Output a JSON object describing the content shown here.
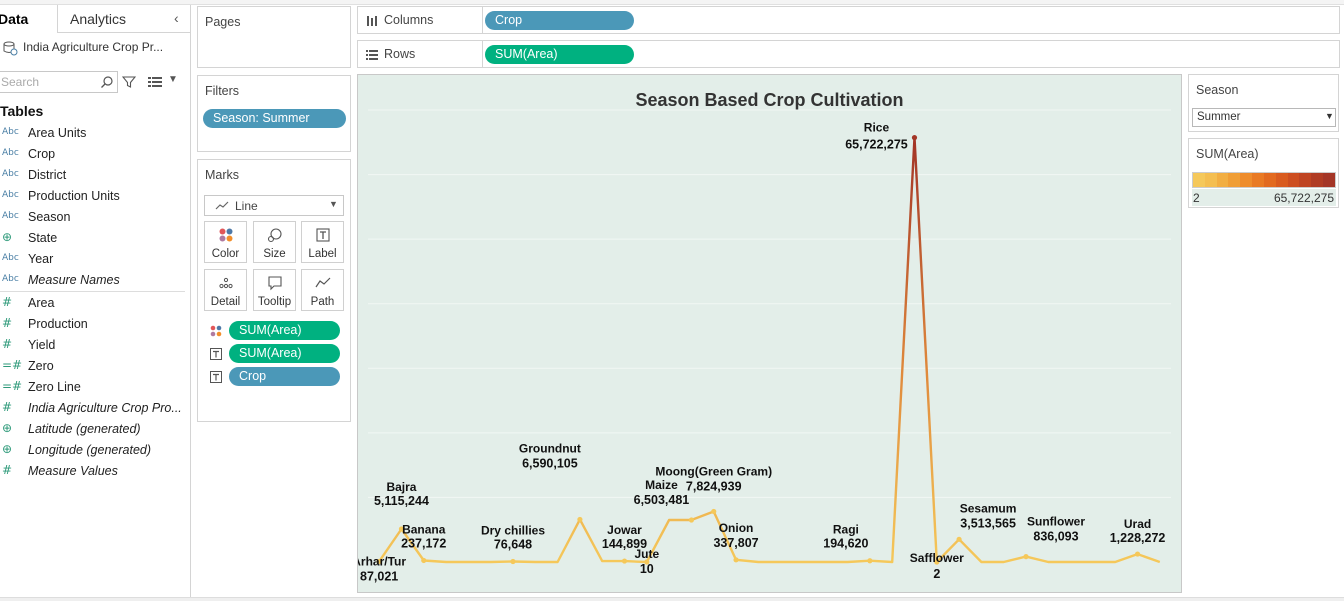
{
  "data_pane": {
    "tabs": {
      "data": "Data",
      "analytics": "Analytics"
    },
    "source_name": "India Agriculture Crop Pr...",
    "search_placeholder": "Search",
    "tables_title": "Tables",
    "dimensions": [
      {
        "type": "Abc",
        "name": "Area Units",
        "italic": false
      },
      {
        "type": "Abc",
        "name": "Crop",
        "italic": false
      },
      {
        "type": "Abc",
        "name": "District",
        "italic": false
      },
      {
        "type": "Abc",
        "name": "Production Units",
        "italic": false
      },
      {
        "type": "Abc",
        "name": "Season",
        "italic": false
      },
      {
        "type": "geo",
        "name": "State",
        "italic": false
      },
      {
        "type": "Abc",
        "name": "Year",
        "italic": false
      },
      {
        "type": "Abc",
        "name": "Measure Names",
        "italic": true
      }
    ],
    "measures": [
      {
        "type": "#",
        "name": "Area",
        "italic": false
      },
      {
        "type": "#",
        "name": "Production",
        "italic": false
      },
      {
        "type": "#",
        "name": "Yield",
        "italic": false
      },
      {
        "type": "=#",
        "name": "Zero",
        "italic": false
      },
      {
        "type": "=#",
        "name": "Zero Line",
        "italic": false
      },
      {
        "type": "#",
        "name": "India Agriculture Crop Pro...",
        "italic": true
      },
      {
        "type": "geo",
        "name": "Latitude (generated)",
        "italic": true
      },
      {
        "type": "geo",
        "name": "Longitude (generated)",
        "italic": true
      },
      {
        "type": "#",
        "name": "Measure Values",
        "italic": true
      }
    ]
  },
  "cards": {
    "pages_title": "Pages",
    "filters_title": "Filters",
    "filter_pill": "Season: Summer",
    "marks_title": "Marks",
    "mark_type": "Line",
    "mark_buttons": {
      "color": "Color",
      "size": "Size",
      "label": "Label",
      "detail": "Detail",
      "tooltip": "Tooltip",
      "path": "Path"
    },
    "mark_fields": {
      "color": "SUM(Area)",
      "label1": "SUM(Area)",
      "label2": "Crop"
    }
  },
  "shelves": {
    "columns_label": "Columns",
    "columns_pill": "Crop",
    "rows_label": "Rows",
    "rows_pill": "SUM(Area)"
  },
  "legends": {
    "season_title": "Season",
    "season_value": "Summer",
    "color_title": "SUM(Area)",
    "color_min": "2",
    "color_max": "65,722,275",
    "ramp_colors": [
      "#f5c85a",
      "#f4be50",
      "#f2ae42",
      "#f09e36",
      "#ee8c2c",
      "#e97a24",
      "#e26a20",
      "#d95b1f",
      "#cd4e20",
      "#bf4422",
      "#b03c24",
      "#a43627"
    ]
  },
  "colors": {
    "dimension_pill": "#4b98b8",
    "measure_pill": "#00b180",
    "view_background": "#e3eee9",
    "line_low": "#f5c85a",
    "line_high": "#a43627"
  },
  "chart_data": {
    "type": "line",
    "title": "Season Based Crop Cultivation",
    "x": [
      "Arhar/Tur",
      "Bajra",
      "Banana",
      "",
      "",
      "",
      "Dry chillies",
      "",
      "",
      "Groundnut",
      "",
      "Jowar",
      "Jute",
      "",
      "Maize",
      "Moong(Green Gram)",
      "Onion",
      "",
      "",
      "",
      "",
      "",
      "Ragi",
      "",
      "Rice",
      "Safflower",
      "Sesamum",
      "",
      "",
      "Sunflower",
      "",
      "",
      "",
      "",
      "Urad",
      ""
    ],
    "values": [
      87021,
      5115244,
      237172,
      0,
      0,
      0,
      76648,
      0,
      0,
      6590105,
      144899,
      144899,
      10,
      6503481,
      6503481,
      7824939,
      337807,
      0,
      0,
      0,
      0,
      0,
      194620,
      0,
      65722275,
      2,
      3513565,
      0,
      0,
      836093,
      0,
      0,
      0,
      0,
      1228272,
      0
    ],
    "labels": [
      {
        "name": "Bajra",
        "value": "5,115,244"
      },
      {
        "name": "Arhar/Tur",
        "value": "87,021"
      },
      {
        "name": "Banana",
        "value": "237,172"
      },
      {
        "name": "Dry chillies",
        "value": "76,648"
      },
      {
        "name": "Groundnut",
        "value": "6,590,105"
      },
      {
        "name": "Jowar",
        "value": "144,899"
      },
      {
        "name": "Jute",
        "value": "10"
      },
      {
        "name": "Maize",
        "value": "6,503,481"
      },
      {
        "name": "Moong(Green Gram)",
        "value": "7,824,939"
      },
      {
        "name": "Onion",
        "value": "337,807"
      },
      {
        "name": "Ragi",
        "value": "194,620"
      },
      {
        "name": "Rice",
        "value": "65,722,275"
      },
      {
        "name": "Safflower",
        "value": "2"
      },
      {
        "name": "Sesamum",
        "value": "3,513,565"
      },
      {
        "name": "Sunflower",
        "value": "836,093"
      },
      {
        "name": "Urad",
        "value": "1,228,272"
      }
    ],
    "ylim": [
      0,
      70000000
    ],
    "grid": true,
    "xlabel": "",
    "ylabel": ""
  }
}
